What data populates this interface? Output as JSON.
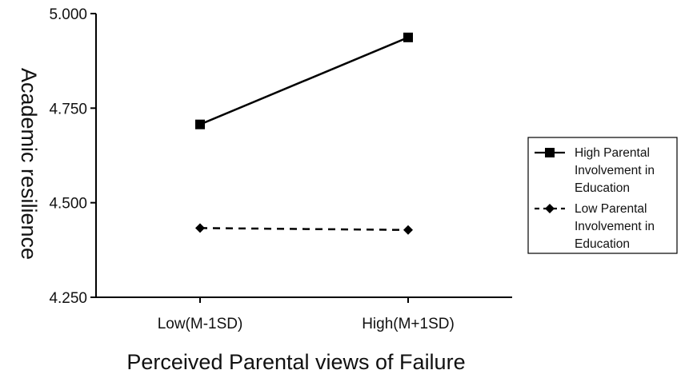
{
  "chart_data": {
    "type": "line",
    "xlabel": "Perceived Parental views of Failure",
    "ylabel": "Academic resilience",
    "categories": [
      "Low(M-1SD)",
      "High(M+1SD)"
    ],
    "ylim": [
      4.25,
      5.0
    ],
    "yticks": [
      "5.000",
      "4.750",
      "4.500",
      "4.250"
    ],
    "ytick_values": [
      5.0,
      4.75,
      4.5,
      4.25
    ],
    "grid": false,
    "legend_position": "right",
    "series": [
      {
        "name_lines": [
          "High Parental",
          "Involvement in",
          "Education"
        ],
        "values": [
          4.707,
          4.937
        ],
        "marker": "square",
        "line_style": "solid",
        "color": "#000000"
      },
      {
        "name_lines": [
          "Low Parental",
          "Involvement in",
          "Education"
        ],
        "values": [
          4.433,
          4.428
        ],
        "marker": "diamond",
        "line_style": "dashed",
        "color": "#000000"
      }
    ]
  }
}
